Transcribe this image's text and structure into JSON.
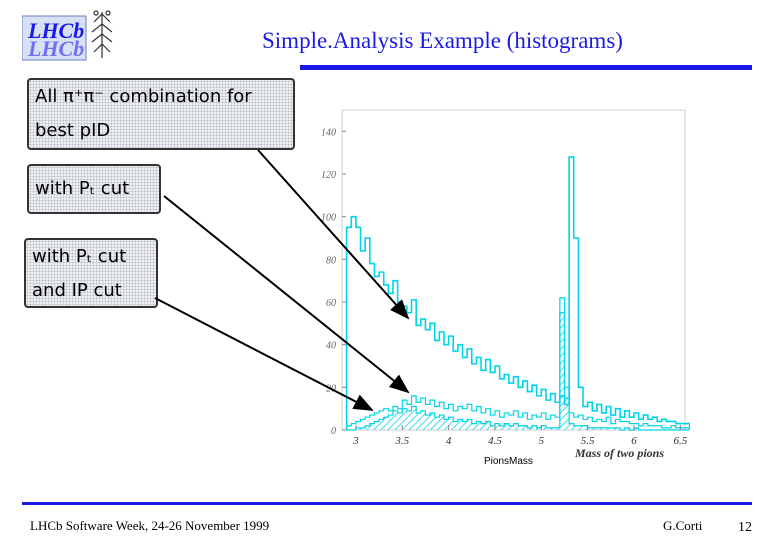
{
  "header": {
    "title": "Simple.Analysis Example (histograms)",
    "logo_text": "LHCb"
  },
  "boxes": [
    {
      "line1": "All π⁺π⁻ combination for",
      "line2": "best pID"
    },
    {
      "line1": "with Pₜ cut"
    },
    {
      "line1": "with Pₜ cut",
      "line2": "and IP cut"
    }
  ],
  "footer": {
    "left": "LHCb Software Week, 24-26 November 1999",
    "author": "G.Corti",
    "page": "12"
  },
  "colors": {
    "accent": "#1a1ae6",
    "histogram": "#00d4e6"
  },
  "chart_data": {
    "type": "bar",
    "xlabel": "Mass of two pions",
    "histogram_name": "PionsMass",
    "xlim": [
      2.85,
      6.55
    ],
    "ylim": [
      0,
      150
    ],
    "x_ticks": [
      "3",
      "3.5",
      "4",
      "4.5",
      "5",
      "5.5",
      "6",
      "6.5"
    ],
    "y_ticks": [
      "0",
      "20",
      "40",
      "60",
      "80",
      "100",
      "120",
      "140"
    ],
    "series": [
      {
        "bin_width": 0.05,
        "x_start": 2.9,
        "values": [
          95,
          100,
          95,
          84,
          90,
          78,
          72,
          74,
          68,
          64,
          70,
          60,
          58,
          55,
          61,
          49,
          52,
          47,
          50,
          42,
          46,
          40,
          44,
          37,
          40,
          34,
          38,
          31,
          34,
          28,
          33,
          27,
          30,
          24,
          26,
          22,
          25,
          20,
          23,
          18,
          21,
          16,
          19,
          14,
          17,
          13,
          16,
          12,
          128,
          90,
          20,
          11,
          13,
          9,
          12,
          8,
          11,
          7,
          10,
          6,
          9,
          6,
          8,
          5,
          7,
          5,
          6,
          4,
          5,
          4,
          4,
          3,
          3,
          3
        ]
      },
      {
        "bin_width": 0.05,
        "x_start": 2.9,
        "values": [
          2,
          3,
          4,
          5,
          6,
          7,
          8,
          9,
          10,
          9,
          11,
          10,
          14,
          12,
          16,
          13,
          15,
          12,
          14,
          11,
          13,
          10,
          12,
          9,
          11,
          10,
          12,
          9,
          11,
          8,
          10,
          7,
          9,
          6,
          8,
          7,
          9,
          6,
          8,
          5,
          7,
          6,
          8,
          5,
          7,
          6,
          62,
          20,
          8,
          6,
          7,
          5,
          6,
          4,
          5,
          4,
          6,
          3,
          5,
          4,
          4,
          3,
          3,
          2,
          3,
          2,
          2,
          2,
          1,
          1,
          2,
          1,
          1,
          1
        ]
      },
      {
        "bin_width": 0.05,
        "x_start": 2.9,
        "values": [
          0,
          0,
          1,
          1,
          2,
          3,
          4,
          5,
          6,
          7,
          9,
          8,
          10,
          9,
          11,
          8,
          9,
          7,
          8,
          6,
          7,
          5,
          6,
          4,
          5,
          4,
          5,
          3,
          4,
          3,
          4,
          2,
          3,
          2,
          3,
          2,
          3,
          2,
          2,
          1,
          2,
          1,
          2,
          1,
          1,
          1,
          55,
          15,
          3,
          2,
          2,
          2,
          1,
          1,
          1,
          1,
          1,
          1,
          1,
          0,
          1,
          0,
          1,
          0,
          0,
          0,
          0,
          0,
          0,
          0,
          0,
          0,
          0,
          0
        ]
      }
    ]
  }
}
